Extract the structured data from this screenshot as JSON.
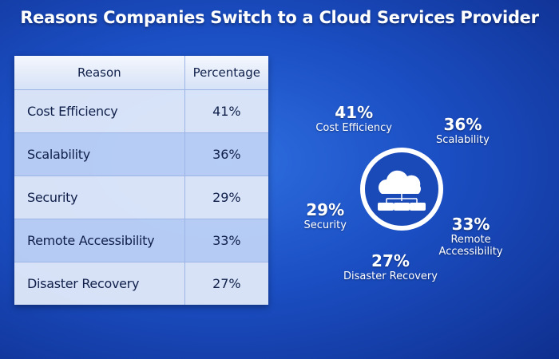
{
  "title": "Reasons Companies Switch to a Cloud Services Provider",
  "table": {
    "header": [
      "Reason",
      "Percentage"
    ],
    "rows": [
      [
        "Cost Efficiency",
        "41%"
      ],
      [
        "Scalability",
        "36%"
      ],
      [
        "Security",
        "29%"
      ],
      [
        "Remote Accessibility",
        "33%"
      ],
      [
        "Disaster Recovery",
        "27%"
      ]
    ]
  },
  "chart_data": {
    "type": "pie",
    "categories": [
      "Cost Efficiency",
      "Scalability",
      "Remote Accessibility",
      "Disaster Recovery",
      "Security"
    ],
    "values": [
      41,
      36,
      33,
      27,
      29
    ],
    "value_labels": [
      "41%",
      "36%",
      "33%",
      "27%",
      "29%"
    ],
    "colors": [
      "#f07a1e",
      "#1e6ee8",
      "#2e9e6e",
      "#6a3fd0",
      "#e23a3a"
    ]
  }
}
